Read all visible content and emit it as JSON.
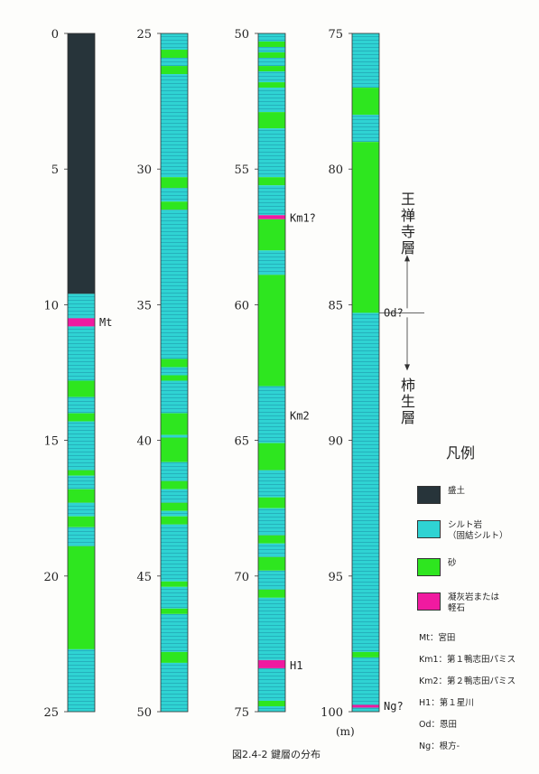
{
  "columns": [
    {
      "ticks": [
        "0",
        "5",
        "10",
        "15",
        "20",
        "25"
      ],
      "layers": [
        {
          "from": 0,
          "to": 9.6,
          "type": "fill"
        },
        {
          "from": 9.6,
          "to": 10.5,
          "type": "silt"
        },
        {
          "from": 10.5,
          "to": 10.8,
          "type": "tuff"
        },
        {
          "from": 10.8,
          "to": 12.8,
          "type": "silt"
        },
        {
          "from": 12.8,
          "to": 13.4,
          "type": "sand"
        },
        {
          "from": 13.4,
          "to": 14.0,
          "type": "silt"
        },
        {
          "from": 14.0,
          "to": 14.3,
          "type": "sand"
        },
        {
          "from": 14.3,
          "to": 16.1,
          "type": "silt"
        },
        {
          "from": 16.1,
          "to": 16.3,
          "type": "sand"
        },
        {
          "from": 16.3,
          "to": 16.8,
          "type": "silt"
        },
        {
          "from": 16.8,
          "to": 17.3,
          "type": "sand"
        },
        {
          "from": 17.3,
          "to": 17.8,
          "type": "silt"
        },
        {
          "from": 17.8,
          "to": 18.2,
          "type": "sand"
        },
        {
          "from": 18.2,
          "to": 18.9,
          "type": "silt"
        },
        {
          "from": 18.9,
          "to": 22.7,
          "type": "sand"
        },
        {
          "from": 22.7,
          "to": 25,
          "type": "silt"
        }
      ]
    },
    {
      "ticks": [
        "25",
        "30",
        "35",
        "40",
        "45",
        "50"
      ],
      "layers": [
        {
          "from": 0,
          "to": 0.6,
          "type": "silt"
        },
        {
          "from": 0.6,
          "to": 0.9,
          "type": "sand"
        },
        {
          "from": 0.9,
          "to": 1.2,
          "type": "silt"
        },
        {
          "from": 1.2,
          "to": 1.5,
          "type": "sand"
        },
        {
          "from": 1.5,
          "to": 5.3,
          "type": "silt"
        },
        {
          "from": 5.3,
          "to": 5.7,
          "type": "sand"
        },
        {
          "from": 5.7,
          "to": 6.2,
          "type": "silt"
        },
        {
          "from": 6.2,
          "to": 6.5,
          "type": "sand"
        },
        {
          "from": 6.5,
          "to": 12.0,
          "type": "silt"
        },
        {
          "from": 12.0,
          "to": 12.3,
          "type": "sand"
        },
        {
          "from": 12.3,
          "to": 12.6,
          "type": "silt"
        },
        {
          "from": 12.6,
          "to": 12.8,
          "type": "sand"
        },
        {
          "from": 12.8,
          "to": 14.0,
          "type": "silt"
        },
        {
          "from": 14.0,
          "to": 14.8,
          "type": "sand"
        },
        {
          "from": 14.8,
          "to": 14.9,
          "type": "silt"
        },
        {
          "from": 14.9,
          "to": 15.8,
          "type": "sand"
        },
        {
          "from": 15.8,
          "to": 16.5,
          "type": "silt"
        },
        {
          "from": 16.5,
          "to": 16.8,
          "type": "sand"
        },
        {
          "from": 16.8,
          "to": 17.3,
          "type": "silt"
        },
        {
          "from": 17.3,
          "to": 17.6,
          "type": "sand"
        },
        {
          "from": 17.6,
          "to": 17.8,
          "type": "silt"
        },
        {
          "from": 17.8,
          "to": 18.1,
          "type": "sand"
        },
        {
          "from": 18.1,
          "to": 20.2,
          "type": "silt"
        },
        {
          "from": 20.2,
          "to": 20.4,
          "type": "sand"
        },
        {
          "from": 20.4,
          "to": 21.2,
          "type": "silt"
        },
        {
          "from": 21.2,
          "to": 21.4,
          "type": "sand"
        },
        {
          "from": 21.4,
          "to": 22.8,
          "type": "silt"
        },
        {
          "from": 22.8,
          "to": 23.2,
          "type": "sand"
        },
        {
          "from": 23.2,
          "to": 25,
          "type": "silt"
        }
      ]
    },
    {
      "ticks": [
        "50",
        "55",
        "60",
        "65",
        "70",
        "75"
      ],
      "layers": [
        {
          "from": 0,
          "to": 0.3,
          "type": "silt"
        },
        {
          "from": 0.3,
          "to": 0.5,
          "type": "sand"
        },
        {
          "from": 0.5,
          "to": 0.7,
          "type": "silt"
        },
        {
          "from": 0.7,
          "to": 0.9,
          "type": "sand"
        },
        {
          "from": 0.9,
          "to": 1.2,
          "type": "silt"
        },
        {
          "from": 1.2,
          "to": 1.4,
          "type": "sand"
        },
        {
          "from": 1.4,
          "to": 1.8,
          "type": "silt"
        },
        {
          "from": 1.8,
          "to": 2.0,
          "type": "sand"
        },
        {
          "from": 2.0,
          "to": 2.9,
          "type": "silt"
        },
        {
          "from": 2.9,
          "to": 3.5,
          "type": "sand"
        },
        {
          "from": 3.5,
          "to": 5.3,
          "type": "silt"
        },
        {
          "from": 5.3,
          "to": 5.6,
          "type": "sand"
        },
        {
          "from": 5.6,
          "to": 6.7,
          "type": "silt"
        },
        {
          "from": 6.7,
          "to": 6.85,
          "type": "tuff"
        },
        {
          "from": 6.85,
          "to": 8.0,
          "type": "sand"
        },
        {
          "from": 8.0,
          "to": 8.9,
          "type": "silt"
        },
        {
          "from": 8.9,
          "to": 13.0,
          "type": "sand"
        },
        {
          "from": 13.0,
          "to": 15.1,
          "type": "silt"
        },
        {
          "from": 15.1,
          "to": 16.1,
          "type": "sand"
        },
        {
          "from": 16.1,
          "to": 17.1,
          "type": "silt"
        },
        {
          "from": 17.1,
          "to": 17.5,
          "type": "sand"
        },
        {
          "from": 17.5,
          "to": 18.5,
          "type": "silt"
        },
        {
          "from": 18.5,
          "to": 18.8,
          "type": "sand"
        },
        {
          "from": 18.8,
          "to": 19.3,
          "type": "silt"
        },
        {
          "from": 19.3,
          "to": 19.8,
          "type": "sand"
        },
        {
          "from": 19.8,
          "to": 20.5,
          "type": "silt"
        },
        {
          "from": 20.5,
          "to": 20.8,
          "type": "sand"
        },
        {
          "from": 20.8,
          "to": 23.1,
          "type": "silt"
        },
        {
          "from": 23.1,
          "to": 23.4,
          "type": "tuff"
        },
        {
          "from": 23.4,
          "to": 24.6,
          "type": "silt"
        },
        {
          "from": 24.6,
          "to": 24.8,
          "type": "sand"
        },
        {
          "from": 24.8,
          "to": 25,
          "type": "silt"
        }
      ]
    },
    {
      "ticks": [
        "75",
        "80",
        "85",
        "90",
        "95",
        "100"
      ],
      "layers": [
        {
          "from": 0,
          "to": 2.0,
          "type": "silt"
        },
        {
          "from": 2.0,
          "to": 3.0,
          "type": "sand"
        },
        {
          "from": 3.0,
          "to": 4.0,
          "type": "silt"
        },
        {
          "from": 4.0,
          "to": 10.3,
          "type": "sand"
        },
        {
          "from": 10.3,
          "to": 22.8,
          "type": "silt"
        },
        {
          "from": 22.8,
          "to": 23.0,
          "type": "sand"
        },
        {
          "from": 23.0,
          "to": 24.75,
          "type": "silt"
        },
        {
          "from": 24.75,
          "to": 24.85,
          "type": "tuff"
        },
        {
          "from": 24.85,
          "to": 25,
          "type": "silt"
        }
      ]
    }
  ],
  "markers": [
    {
      "label": "Mt",
      "column": 0,
      "depth": 10.65
    },
    {
      "label": "Km1?",
      "column": 2,
      "depth": 6.8
    },
    {
      "label": "Km2",
      "column": 2,
      "depth": 14.1
    },
    {
      "label": "H1",
      "column": 2,
      "depth": 23.3
    },
    {
      "label": "Od?",
      "column": 3,
      "depth": 10.3
    },
    {
      "label": "Ng?",
      "column": 3,
      "depth": 24.8
    }
  ],
  "unit_label": "(m)",
  "formations": {
    "upper": "王禅寺層",
    "lower": "柿生層"
  },
  "legend": {
    "title": "凡例",
    "items": [
      {
        "label": "盛土",
        "color": "#27343a"
      },
      {
        "label": "シルト岩\n（固結シルト）",
        "color": "#2fd3d3"
      },
      {
        "label": "砂",
        "color": "#2ee61f"
      },
      {
        "label": "凝灰岩または\n軽石",
        "color": "#f01aa0"
      }
    ],
    "abbreviations": [
      "Mt：宮田",
      "Km1：第１鴨志田パミス",
      "Km2：第２鴨志田パミス",
      "H1：第１星川",
      "Od：恩田",
      "Ng：根方-"
    ]
  },
  "caption": "図2.4-2 鍵層の分布",
  "colors": {
    "fill": "#27343a",
    "silt": "#2fd3d3",
    "sand": "#2ee61f",
    "tuff": "#f01aa0"
  }
}
